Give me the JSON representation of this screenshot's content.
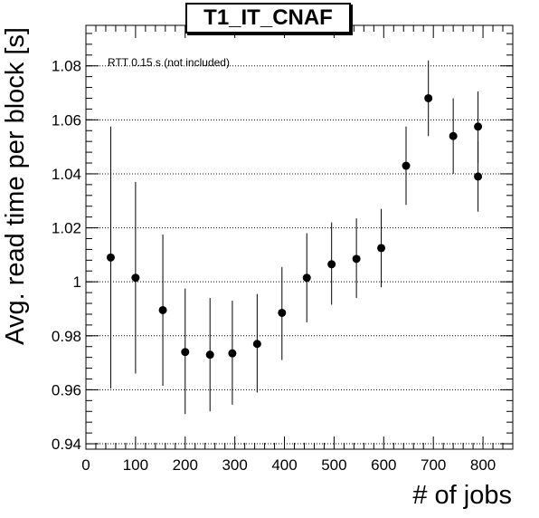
{
  "chart_data": {
    "type": "scatter",
    "title": "T1_IT_CNAF",
    "xlabel": "# of jobs",
    "ylabel": "Avg. read time per block [s]",
    "annotation": "RTT 0.15 s (not included)",
    "xlim": [
      0,
      860
    ],
    "ylim": [
      0.938,
      1.095
    ],
    "x_ticks": [
      0,
      100,
      200,
      300,
      400,
      500,
      600,
      700,
      800
    ],
    "y_ticks": [
      0.94,
      0.96,
      0.98,
      1.0,
      1.02,
      1.04,
      1.06,
      1.08
    ],
    "x_tick_labels": [
      "0",
      "100",
      "200",
      "300",
      "400",
      "500",
      "600",
      "700",
      "800"
    ],
    "y_tick_labels": [
      "0.94",
      "0.96",
      "0.98",
      "1",
      "1.02",
      "1.04",
      "1.06",
      "1.08"
    ],
    "grid": "horizontal-dotted",
    "marker_color": "#000000",
    "points": [
      {
        "x": 50,
        "y": 1.009,
        "y_low": 0.9605,
        "y_high": 1.0575
      },
      {
        "x": 100,
        "y": 1.0015,
        "y_low": 0.966,
        "y_high": 1.037
      },
      {
        "x": 155,
        "y": 0.9895,
        "y_low": 0.9615,
        "y_high": 1.0175
      },
      {
        "x": 200,
        "y": 0.974,
        "y_low": 0.951,
        "y_high": 0.9975
      },
      {
        "x": 250,
        "y": 0.973,
        "y_low": 0.952,
        "y_high": 0.994
      },
      {
        "x": 295,
        "y": 0.9735,
        "y_low": 0.9545,
        "y_high": 0.993
      },
      {
        "x": 345,
        "y": 0.977,
        "y_low": 0.959,
        "y_high": 0.9955
      },
      {
        "x": 395,
        "y": 0.9885,
        "y_low": 0.971,
        "y_high": 1.0055
      },
      {
        "x": 445,
        "y": 1.0015,
        "y_low": 0.985,
        "y_high": 1.018
      },
      {
        "x": 495,
        "y": 1.0065,
        "y_low": 0.9915,
        "y_high": 1.022
      },
      {
        "x": 545,
        "y": 1.0085,
        "y_low": 0.994,
        "y_high": 1.0235
      },
      {
        "x": 595,
        "y": 1.0125,
        "y_low": 0.998,
        "y_high": 1.027
      },
      {
        "x": 645,
        "y": 1.043,
        "y_low": 1.0285,
        "y_high": 1.0575
      },
      {
        "x": 690,
        "y": 1.068,
        "y_low": 1.054,
        "y_high": 1.082
      },
      {
        "x": 740,
        "y": 1.054,
        "y_low": 1.04,
        "y_high": 1.068
      },
      {
        "x": 790,
        "y": 1.0575,
        "y_low": 1.044,
        "y_high": 1.0705
      },
      {
        "x": 790,
        "y": 1.039,
        "y_low": 1.026,
        "y_high": 1.052
      }
    ]
  }
}
